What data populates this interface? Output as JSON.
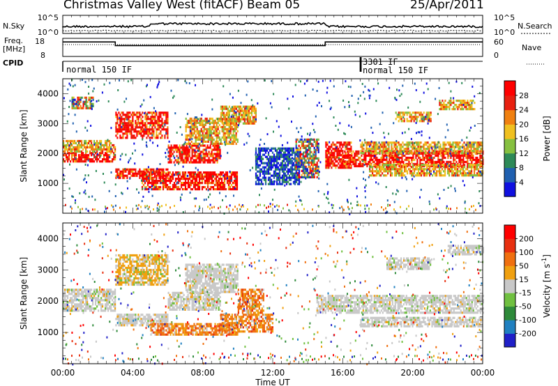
{
  "header": {
    "title": "Christmas Valley West (fitACF)",
    "beam": "Beam 05",
    "date": "25/Apr/2011"
  },
  "status_panels": {
    "nsky_label": "N.Sky",
    "nsky_ticks": [
      "10^5",
      "10^0"
    ],
    "nsearch_label": "N.Search",
    "nsearch_ticks": [
      "10^5",
      "10^0"
    ],
    "freq_label": "Freq.",
    "freq_unit": "[MHz]",
    "freq_ticks": [
      "18",
      "8"
    ],
    "nave_label": "Nave",
    "nave_ticks": [
      "60",
      "0"
    ],
    "cpid_label": "CPID",
    "cpid_segments": [
      {
        "label": "normal 150 IF",
        "start_hour": 0.0
      },
      {
        "label": "3301 IF",
        "start_hour": 17.0
      },
      {
        "label": "normal 150 IF",
        "start_hour": 17.05
      }
    ],
    "freq_series": [
      [
        0,
        16
      ],
      [
        3,
        16
      ],
      [
        3,
        14
      ],
      [
        15,
        14
      ],
      [
        15,
        16
      ],
      [
        24,
        16
      ]
    ]
  },
  "chart_data": [
    {
      "type": "heatmap",
      "name": "power",
      "ylabel": "Slant Range [km]",
      "yticks": [
        1000,
        2000,
        3000,
        4000
      ],
      "ylim": [
        0,
        4500
      ],
      "xlim": [
        0,
        24
      ],
      "colorbar": {
        "label": "Power [dB]",
        "ticks": [
          "4",
          "8",
          "12",
          "16",
          "20",
          "24",
          "28"
        ],
        "colors": [
          "#1010e0",
          "#2060b0",
          "#2e8a58",
          "#86c040",
          "#f0c020",
          "#f08010",
          "#e82010",
          "#ff0000"
        ]
      },
      "bands": [
        {
          "x": [
            0,
            3
          ],
          "y": [
            1750,
            2050
          ],
          "level": "high"
        },
        {
          "x": [
            0,
            3
          ],
          "y": [
            2050,
            2450
          ],
          "level": "mid"
        },
        {
          "x": [
            0.5,
            1.7
          ],
          "y": [
            3500,
            3900
          ],
          "level": "mixed"
        },
        {
          "x": [
            3,
            6
          ],
          "y": [
            1200,
            1500
          ],
          "level": "high"
        },
        {
          "x": [
            3,
            6
          ],
          "y": [
            2500,
            3400
          ],
          "level": "high"
        },
        {
          "x": [
            6,
            9
          ],
          "y": [
            1700,
            2300
          ],
          "level": "high"
        },
        {
          "x": [
            4.5,
            10
          ],
          "y": [
            800,
            1400
          ],
          "level": "high"
        },
        {
          "x": [
            7,
            10
          ],
          "y": [
            2300,
            3200
          ],
          "level": "mid"
        },
        {
          "x": [
            9,
            11
          ],
          "y": [
            3000,
            3600
          ],
          "level": "mid"
        },
        {
          "x": [
            11,
            13.5
          ],
          "y": [
            1000,
            2200
          ],
          "level": "low"
        },
        {
          "x": [
            13.3,
            14.6
          ],
          "y": [
            1200,
            2500
          ],
          "level": "mixed"
        },
        {
          "x": [
            15,
            16.5
          ],
          "y": [
            1500,
            2400
          ],
          "level": "high"
        },
        {
          "x": [
            16,
            24
          ],
          "y": [
            1600,
            2100
          ],
          "level": "high"
        },
        {
          "x": [
            17.5,
            24
          ],
          "y": [
            1300,
            1650
          ],
          "level": "mid"
        },
        {
          "x": [
            17,
            24
          ],
          "y": [
            2000,
            2400
          ],
          "level": "mid"
        },
        {
          "x": [
            19,
            21
          ],
          "y": [
            3100,
            3400
          ],
          "level": "mid"
        },
        {
          "x": [
            21.5,
            23.5
          ],
          "y": [
            3500,
            3800
          ],
          "level": "mid"
        }
      ]
    },
    {
      "type": "heatmap",
      "name": "velocity",
      "ylabel": "Slant Range [km]",
      "yticks": [
        1000,
        2000,
        3000,
        4000
      ],
      "ylim": [
        0,
        4500
      ],
      "xlim": [
        0,
        24
      ],
      "xlabel": "Time UT",
      "xticks": [
        "00:00",
        "04:00",
        "08:00",
        "12:00",
        "16:00",
        "20:00",
        "00:00"
      ],
      "colorbar": {
        "label": "Velocity [m s^-1]",
        "ticks": [
          "200",
          "100",
          "50",
          "15",
          "-15",
          "-50",
          "-100",
          "-200"
        ],
        "colors": [
          "#2020c8",
          "#2080c0",
          "#2e8a3a",
          "#70c040",
          "#c8c8c8",
          "#f0a010",
          "#f07010",
          "#e83010",
          "#ff0000"
        ]
      },
      "bands": [
        {
          "x": [
            0,
            3
          ],
          "y": [
            1700,
            2400
          ],
          "level": "ground"
        },
        {
          "x": [
            3,
            6
          ],
          "y": [
            1200,
            1600
          ],
          "level": "ground"
        },
        {
          "x": [
            3,
            6
          ],
          "y": [
            2500,
            3500
          ],
          "level": "toward"
        },
        {
          "x": [
            5,
            10
          ],
          "y": [
            900,
            1300
          ],
          "level": "away"
        },
        {
          "x": [
            6,
            9
          ],
          "y": [
            1700,
            2300
          ],
          "level": "ground"
        },
        {
          "x": [
            7,
            10
          ],
          "y": [
            2300,
            3200
          ],
          "level": "ground"
        },
        {
          "x": [
            9,
            12
          ],
          "y": [
            1000,
            1600
          ],
          "level": "away"
        },
        {
          "x": [
            10,
            11.5
          ],
          "y": [
            1600,
            2400
          ],
          "level": "away"
        },
        {
          "x": [
            14.5,
            24
          ],
          "y": [
            1600,
            2200
          ],
          "level": "ground"
        },
        {
          "x": [
            17,
            24
          ],
          "y": [
            1200,
            1500
          ],
          "level": "ground"
        },
        {
          "x": [
            18.5,
            21
          ],
          "y": [
            3000,
            3400
          ],
          "level": "ground"
        },
        {
          "x": [
            22,
            24
          ],
          "y": [
            3500,
            3800
          ],
          "level": "ground"
        }
      ]
    }
  ]
}
